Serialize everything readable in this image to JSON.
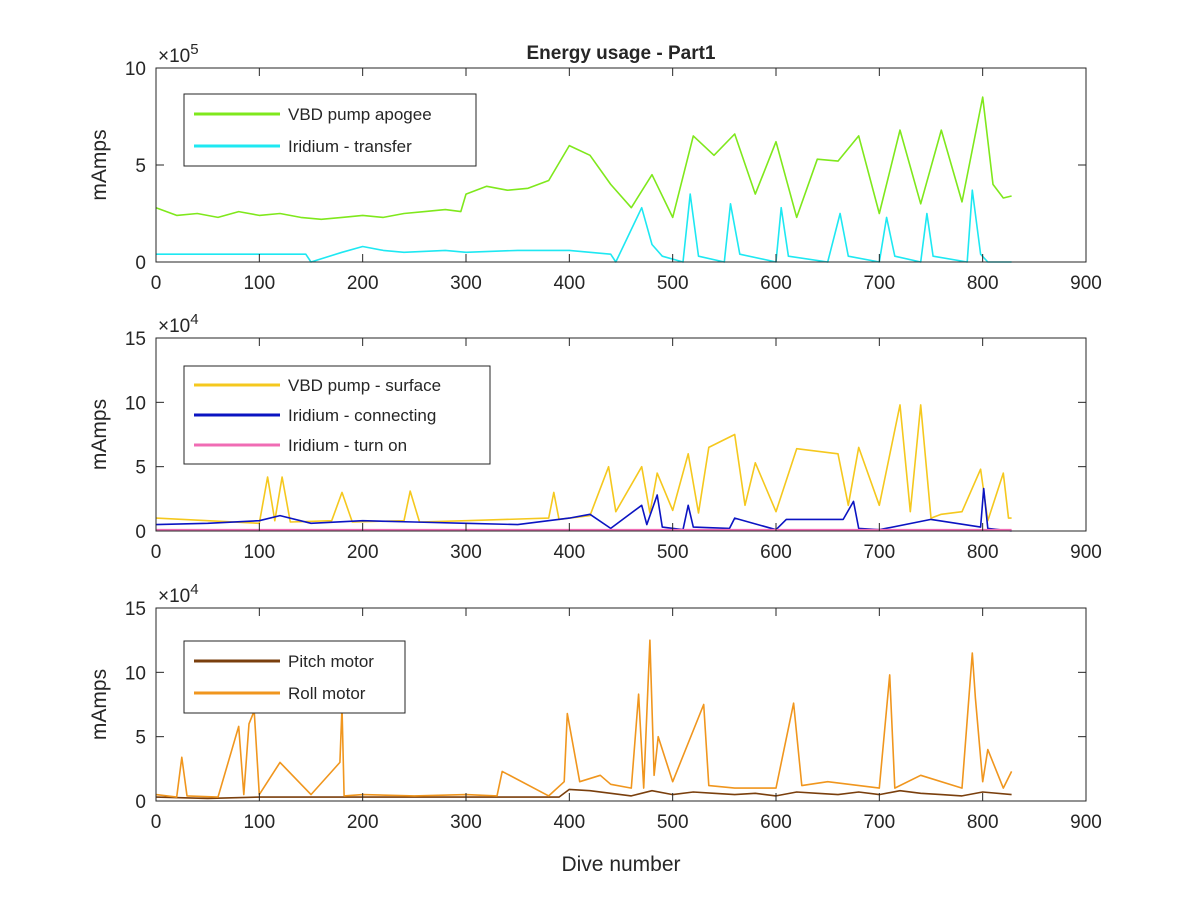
{
  "chart_data": [
    {
      "type": "line",
      "title": "Energy usage - Part1",
      "xlabel": "",
      "ylabel": "mAmps",
      "xlim": [
        0,
        900
      ],
      "ylim": [
        0,
        10
      ],
      "y_multiplier": "×10^5",
      "x_ticks": [
        "0",
        "100",
        "200",
        "300",
        "400",
        "500",
        "600",
        "700",
        "800",
        "900"
      ],
      "y_ticks": [
        "0",
        "5",
        "10"
      ],
      "legend_position": "top-left",
      "grid": false,
      "series": [
        {
          "name": "VBD pump apogee",
          "color": "#7fe81c",
          "x": [
            0,
            20,
            40,
            60,
            80,
            100,
            120,
            140,
            160,
            180,
            200,
            220,
            240,
            260,
            280,
            295,
            300,
            320,
            340,
            360,
            380,
            400,
            420,
            440,
            460,
            480,
            500,
            520,
            540,
            560,
            580,
            600,
            620,
            640,
            660,
            680,
            700,
            720,
            740,
            760,
            780,
            800,
            810,
            820,
            828
          ],
          "values": [
            2.8,
            2.4,
            2.5,
            2.3,
            2.6,
            2.4,
            2.5,
            2.3,
            2.2,
            2.3,
            2.4,
            2.3,
            2.5,
            2.6,
            2.7,
            2.6,
            3.5,
            3.9,
            3.7,
            3.8,
            4.2,
            6.0,
            5.5,
            4.0,
            2.8,
            4.5,
            2.3,
            6.5,
            5.5,
            6.6,
            3.5,
            6.2,
            2.3,
            5.3,
            5.2,
            6.5,
            2.5,
            6.8,
            3.0,
            6.8,
            3.1,
            8.5,
            4.0,
            3.3,
            3.4
          ]
        },
        {
          "name": "Iridium - transfer",
          "color": "#1ee8f2",
          "x": [
            0,
            50,
            100,
            145,
            150,
            180,
            200,
            220,
            240,
            280,
            300,
            350,
            400,
            440,
            445,
            470,
            480,
            490,
            510,
            517,
            525,
            550,
            556,
            565,
            600,
            605,
            612,
            650,
            662,
            670,
            700,
            707,
            715,
            740,
            746,
            752,
            785,
            790,
            798,
            805,
            828
          ],
          "values": [
            0.4,
            0.4,
            0.4,
            0.4,
            0.0,
            0.5,
            0.8,
            0.6,
            0.5,
            0.6,
            0.5,
            0.6,
            0.6,
            0.4,
            0.0,
            2.8,
            0.9,
            0.3,
            0.0,
            3.5,
            0.3,
            0.0,
            3.0,
            0.4,
            0.0,
            2.8,
            0.3,
            0.0,
            2.5,
            0.3,
            0.0,
            2.3,
            0.3,
            0.0,
            2.5,
            0.3,
            0.0,
            3.7,
            0.4,
            0.0,
            0.0
          ]
        }
      ]
    },
    {
      "type": "line",
      "title": "",
      "xlabel": "",
      "ylabel": "mAmps",
      "xlim": [
        0,
        900
      ],
      "ylim": [
        0,
        15
      ],
      "y_multiplier": "×10^4",
      "x_ticks": [
        "0",
        "100",
        "200",
        "300",
        "400",
        "500",
        "600",
        "700",
        "800",
        "900"
      ],
      "y_ticks": [
        "0",
        "5",
        "10",
        "15"
      ],
      "legend_position": "top-left",
      "grid": false,
      "series": [
        {
          "name": "VBD pump - surface",
          "color": "#f5c81e",
          "x": [
            0,
            50,
            100,
            108,
            115,
            122,
            130,
            170,
            180,
            190,
            240,
            246,
            255,
            300,
            380,
            385,
            390,
            420,
            438,
            445,
            470,
            478,
            485,
            500,
            515,
            525,
            535,
            560,
            570,
            580,
            600,
            620,
            660,
            670,
            680,
            700,
            720,
            730,
            740,
            750,
            760,
            780,
            798,
            805,
            820,
            825,
            828
          ],
          "values": [
            1.0,
            0.8,
            0.6,
            4.2,
            0.8,
            4.2,
            0.7,
            0.8,
            3.0,
            0.7,
            0.8,
            3.1,
            0.7,
            0.8,
            1.0,
            3.0,
            0.9,
            1.2,
            5.0,
            1.5,
            5.0,
            1.4,
            4.5,
            1.6,
            6.0,
            1.4,
            6.5,
            7.5,
            2.0,
            5.3,
            1.5,
            6.4,
            6.0,
            2.0,
            6.5,
            2.0,
            9.8,
            1.5,
            9.8,
            1.0,
            1.3,
            1.5,
            4.8,
            0.8,
            4.5,
            1.0,
            1.0
          ]
        },
        {
          "name": "Iridium - connecting",
          "color": "#0b14c2",
          "x": [
            0,
            50,
            100,
            120,
            150,
            200,
            250,
            300,
            350,
            400,
            420,
            440,
            470,
            475,
            485,
            490,
            510,
            515,
            520,
            555,
            560,
            600,
            610,
            665,
            675,
            680,
            700,
            750,
            798,
            801,
            805,
            828
          ],
          "values": [
            0.5,
            0.6,
            0.8,
            1.2,
            0.6,
            0.8,
            0.7,
            0.6,
            0.5,
            1.0,
            1.3,
            0.2,
            2.0,
            0.5,
            2.8,
            0.3,
            0.1,
            2.0,
            0.3,
            0.2,
            1.0,
            0.1,
            0.9,
            0.9,
            2.3,
            0.2,
            0.1,
            0.9,
            0.3,
            3.3,
            0.2,
            0.0
          ]
        },
        {
          "name": "Iridium - turn on",
          "color": "#f06cb4",
          "x": [
            0,
            100,
            200,
            300,
            400,
            500,
            600,
            700,
            800,
            828
          ],
          "values": [
            0.1,
            0.1,
            0.1,
            0.1,
            0.1,
            0.1,
            0.1,
            0.1,
            0.1,
            0.1
          ]
        }
      ]
    },
    {
      "type": "line",
      "title": "",
      "xlabel": "Dive number",
      "ylabel": "mAmps",
      "xlim": [
        0,
        900
      ],
      "ylim": [
        0,
        15
      ],
      "y_multiplier": "×10^4",
      "x_ticks": [
        "0",
        "100",
        "200",
        "300",
        "400",
        "500",
        "600",
        "700",
        "800",
        "900"
      ],
      "y_ticks": [
        "0",
        "5",
        "10",
        "15"
      ],
      "legend_position": "top-left",
      "grid": false,
      "series": [
        {
          "name": "Pitch motor",
          "color": "#7a3f0d",
          "x": [
            0,
            50,
            100,
            150,
            200,
            250,
            300,
            350,
            390,
            400,
            420,
            440,
            460,
            480,
            500,
            520,
            540,
            560,
            580,
            600,
            620,
            640,
            660,
            680,
            700,
            720,
            740,
            760,
            780,
            800,
            828
          ],
          "values": [
            0.3,
            0.2,
            0.3,
            0.3,
            0.3,
            0.3,
            0.3,
            0.3,
            0.3,
            0.9,
            0.8,
            0.6,
            0.4,
            0.8,
            0.5,
            0.7,
            0.6,
            0.5,
            0.6,
            0.4,
            0.7,
            0.6,
            0.5,
            0.7,
            0.5,
            0.8,
            0.6,
            0.5,
            0.4,
            0.7,
            0.5
          ]
        },
        {
          "name": "Roll motor",
          "color": "#f0961e",
          "x": [
            0,
            20,
            25,
            30,
            60,
            80,
            85,
            90,
            95,
            100,
            120,
            150,
            178,
            180,
            182,
            200,
            250,
            300,
            330,
            335,
            380,
            395,
            398,
            410,
            430,
            440,
            460,
            467,
            472,
            478,
            482,
            486,
            500,
            530,
            535,
            560,
            600,
            617,
            625,
            650,
            700,
            710,
            715,
            740,
            780,
            790,
            793,
            800,
            805,
            820,
            828
          ],
          "values": [
            0.5,
            0.3,
            3.4,
            0.4,
            0.3,
            5.8,
            0.5,
            6.0,
            7.0,
            0.5,
            3.0,
            0.5,
            3.0,
            7.3,
            0.4,
            0.5,
            0.4,
            0.5,
            0.4,
            2.3,
            0.4,
            1.5,
            6.8,
            1.5,
            2.0,
            1.3,
            1.0,
            8.3,
            1.0,
            12.5,
            2.0,
            5.0,
            1.5,
            7.5,
            1.2,
            1.0,
            1.0,
            7.6,
            1.2,
            1.5,
            1.0,
            9.8,
            1.0,
            2.0,
            1.0,
            11.5,
            8.0,
            1.5,
            4.0,
            1.0,
            2.3
          ]
        }
      ]
    }
  ]
}
